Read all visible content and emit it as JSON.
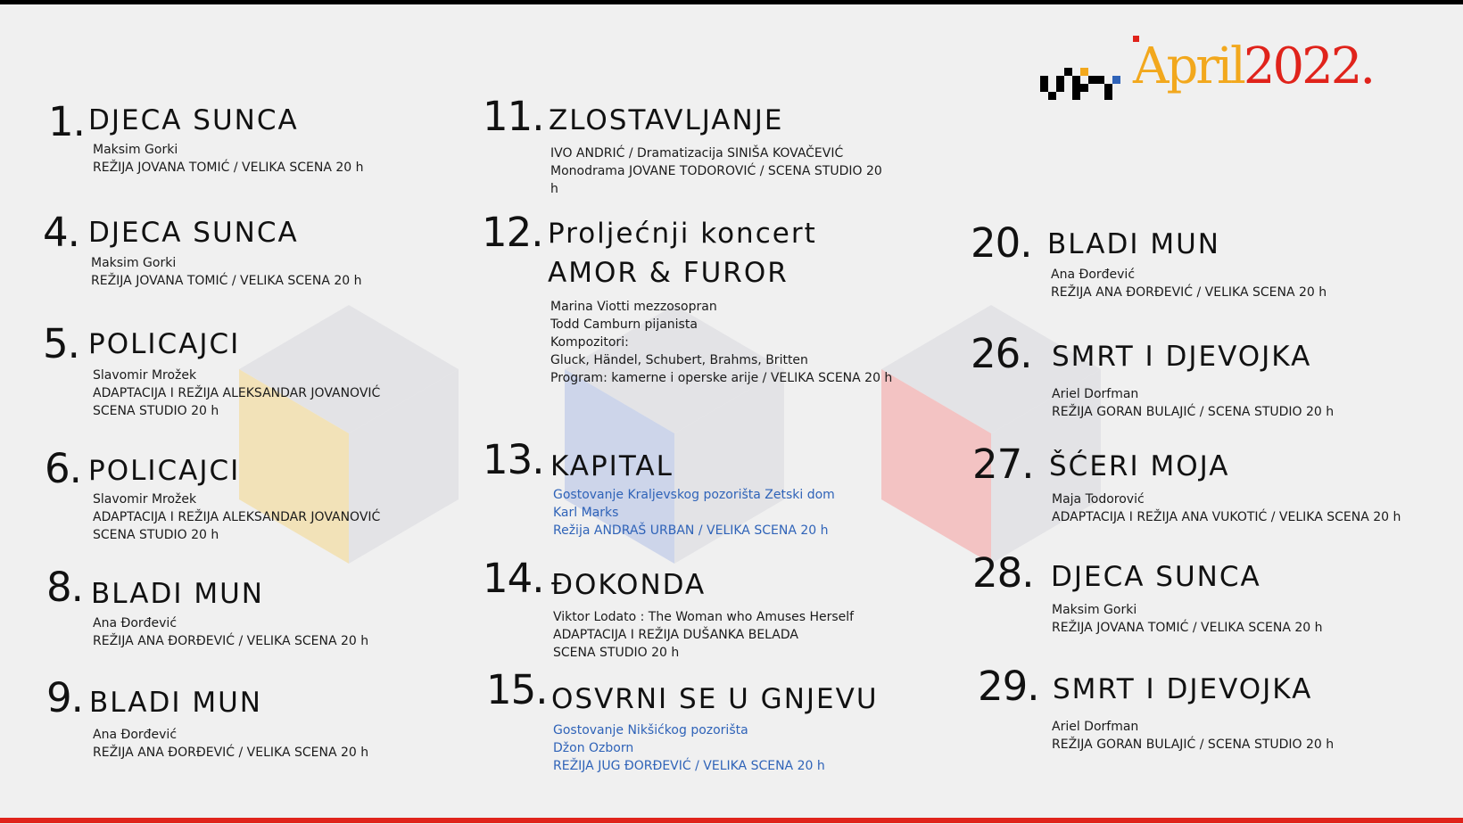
{
  "header": {
    "month": "April",
    "year": "2022",
    "dot": "."
  },
  "colors": {
    "top_bar": "#000000",
    "bottom_bar": "#e0231b",
    "accent_yellow": "#f2a81d",
    "accent_red": "#e0231b",
    "accent_blue": "#2f63b8"
  },
  "events": [
    {
      "num": "1.",
      "title": "DJECA SUNCA",
      "lines": [
        "Maksim Gorki",
        "REŽIJA JOVANA TOMIĆ  /  VELIKA SCENA  20 h"
      ]
    },
    {
      "num": "4.",
      "title": "DJECA SUNCA",
      "lines": [
        "Maksim Gorki",
        "REŽIJA JOVANA TOMIĆ  /  VELIKA SCENA  20 h"
      ]
    },
    {
      "num": "5.",
      "title": "POLICAJCI",
      "lines": [
        "Slavomir Mrožek",
        "ADAPTACIJA I REŽIJA ALEKSANDAR JOVANOVIĆ",
        "SCENA STUDIO  20 h"
      ]
    },
    {
      "num": "6.",
      "title": "POLICAJCI",
      "lines": [
        "Slavomir Mrožek",
        "ADAPTACIJA I REŽIJA ALEKSANDAR JOVANOVIĆ",
        "SCENA STUDIO  20 h"
      ]
    },
    {
      "num": "8.",
      "title": "BLADI MUN",
      "lines": [
        "Ana Đorđević",
        "REŽIJA ANA ĐORĐEVIĆ /  VELIKA SCENA  20 h"
      ]
    },
    {
      "num": "9.",
      "title": "BLADI MUN",
      "lines": [
        "Ana Đorđević",
        "REŽIJA ANA ĐORĐEVIĆ /  VELIKA SCENA  20 h"
      ]
    },
    {
      "num": "11.",
      "title": "ZLOSTAVLJANJE",
      "lines": [
        "IVO ANDRIĆ / Dramatizacija SINIŠA KOVAČEVIĆ",
        "Monodrama JOVANE TODOROVIĆ / SCENA STUDIO  20 h"
      ]
    },
    {
      "num": "12.",
      "title": "Proljećnji koncert",
      "title2": "AMOR & FUROR",
      "lines": [
        "Marina Viotti mezzosopran",
        "Todd Camburn pijanista",
        "Kompozitori:",
        "Gluck, Händel, Schubert, Brahms, Britten",
        "Program: kamerne i operske arije  /  VELIKA SCENA  20 h"
      ]
    },
    {
      "num": "13.",
      "title": "KAPITAL",
      "lines": [
        "Gostovanje Kraljevskog pozorišta Zetski dom",
        "Karl Marks",
        "Režija ANDRAŠ URBAN  /  VELIKA SCENA  20 h"
      ]
    },
    {
      "num": "14.",
      "title": "ĐOKONDA",
      "lines": [
        "Viktor Lodato : The Woman who Amuses Herself",
        "ADAPTACIJA I REŽIJA DUŠANKA BELADA",
        "SCENA STUDIO  20 h"
      ]
    },
    {
      "num": "15.",
      "title": "OSVRNI SE U GNJEVU",
      "lines": [
        "Gostovanje Nikšićkog pozorišta",
        "Džon Ozborn",
        "REŽIJA JUG ĐORĐEVIĆ  /  VELIKA SCENA  20 h"
      ]
    },
    {
      "num": "20.",
      "title": "BLADI MUN",
      "lines": [
        "Ana Đorđević",
        "REŽIJA ANA ĐORĐEVIĆ /  VELIKA SCENA  20 h"
      ]
    },
    {
      "num": "26.",
      "title": "SMRT I DJEVOJKA",
      "lines": [
        "Ariel Dorfman",
        "REŽIJA GORAN BULAJIĆ  /  SCENA STUDIO  20 h"
      ]
    },
    {
      "num": "27.",
      "title": "ŠĆERI MOJA",
      "lines": [
        "Maja Todorović",
        "ADAPTACIJA I REŽIJA ANA VUKOTIĆ  /  VELIKA SCENA  20 h"
      ]
    },
    {
      "num": "28.",
      "title": "DJECA SUNCA",
      "lines": [
        "Maksim Gorki",
        "REŽIJA JOVANA TOMIĆ  /  VELIKA SCENA  20 h"
      ]
    },
    {
      "num": "29.",
      "title": "SMRT I DJEVOJKA",
      "lines": [
        "Ariel Dorfman",
        "REŽIJA GORAN BULAJIĆ  /  SCENA STUDIO  20 h"
      ]
    }
  ]
}
